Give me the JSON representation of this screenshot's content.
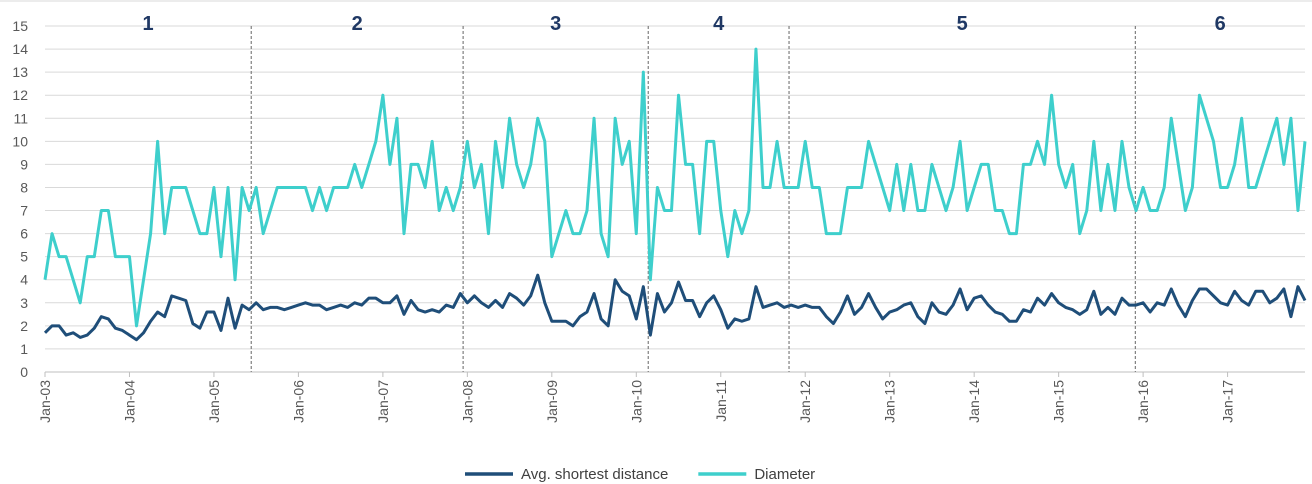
{
  "chart_data": {
    "type": "line",
    "categories": [
      "Jan-03",
      null,
      null,
      null,
      null,
      null,
      null,
      null,
      null,
      null,
      null,
      null,
      "Jan-04",
      null,
      null,
      null,
      null,
      null,
      null,
      null,
      null,
      null,
      null,
      null,
      "Jan-05",
      null,
      null,
      null,
      null,
      null,
      null,
      null,
      null,
      null,
      null,
      null,
      "Jan-06",
      null,
      null,
      null,
      null,
      null,
      null,
      null,
      null,
      null,
      null,
      null,
      "Jan-07",
      null,
      null,
      null,
      null,
      null,
      null,
      null,
      null,
      null,
      null,
      null,
      "Jan-08",
      null,
      null,
      null,
      null,
      null,
      null,
      null,
      null,
      null,
      null,
      null,
      "Jan-09",
      null,
      null,
      null,
      null,
      null,
      null,
      null,
      null,
      null,
      null,
      null,
      "Jan-10",
      null,
      null,
      null,
      null,
      null,
      null,
      null,
      null,
      null,
      null,
      null,
      "Jan-11",
      null,
      null,
      null,
      null,
      null,
      null,
      null,
      null,
      null,
      null,
      null,
      "Jan-12",
      null,
      null,
      null,
      null,
      null,
      null,
      null,
      null,
      null,
      null,
      null,
      "Jan-13",
      null,
      null,
      null,
      null,
      null,
      null,
      null,
      null,
      null,
      null,
      null,
      "Jan-14",
      null,
      null,
      null,
      null,
      null,
      null,
      null,
      null,
      null,
      null,
      null,
      "Jan-15",
      null,
      null,
      null,
      null,
      null,
      null,
      null,
      null,
      null,
      null,
      null,
      "Jan-16",
      null,
      null,
      null,
      null,
      null,
      null,
      null,
      null,
      null,
      null,
      null,
      "Jan-17",
      null,
      null,
      null,
      null,
      null,
      null,
      null,
      null,
      null,
      null,
      null
    ],
    "series": [
      {
        "name": "Avg. shortest distance",
        "color": "#1f4e79",
        "values": [
          1.7,
          2.0,
          2.0,
          1.6,
          1.7,
          1.5,
          1.6,
          1.9,
          2.4,
          2.3,
          1.9,
          1.8,
          1.6,
          1.4,
          1.7,
          2.2,
          2.6,
          2.4,
          3.3,
          3.2,
          3.1,
          2.1,
          1.9,
          2.6,
          2.6,
          1.8,
          3.2,
          1.9,
          2.9,
          2.7,
          3.0,
          2.7,
          2.8,
          2.8,
          2.7,
          2.8,
          2.9,
          3.0,
          2.9,
          2.9,
          2.7,
          2.8,
          2.9,
          2.8,
          3.0,
          2.9,
          3.2,
          3.2,
          3.0,
          3.0,
          3.3,
          2.5,
          3.1,
          2.7,
          2.6,
          2.7,
          2.6,
          2.9,
          2.8,
          3.4,
          3.0,
          3.3,
          3.0,
          2.8,
          3.1,
          2.8,
          3.4,
          3.2,
          2.9,
          3.3,
          4.2,
          3.0,
          2.2,
          2.2,
          2.2,
          2.0,
          2.4,
          2.6,
          3.4,
          2.3,
          2.0,
          4.0,
          3.5,
          3.3,
          2.3,
          3.7,
          1.6,
          3.4,
          2.6,
          3.0,
          3.9,
          3.1,
          3.1,
          2.4,
          3.0,
          3.3,
          2.7,
          1.9,
          2.3,
          2.2,
          2.3,
          3.7,
          2.8,
          2.9,
          3.0,
          2.8,
          2.9,
          2.8,
          2.9,
          2.8,
          2.8,
          2.4,
          2.1,
          2.6,
          3.3,
          2.5,
          2.8,
          3.4,
          2.8,
          2.3,
          2.6,
          2.7,
          2.9,
          3.0,
          2.4,
          2.1,
          3.0,
          2.6,
          2.5,
          2.9,
          3.6,
          2.7,
          3.2,
          3.3,
          2.9,
          2.6,
          2.5,
          2.2,
          2.2,
          2.7,
          2.6,
          3.2,
          2.9,
          3.4,
          3.0,
          2.8,
          2.7,
          2.5,
          2.7,
          3.5,
          2.5,
          2.8,
          2.5,
          3.2,
          2.9,
          2.9,
          3.0,
          2.6,
          3.0,
          2.9,
          3.6,
          2.9,
          2.4,
          3.1,
          3.6,
          3.6,
          3.3,
          3.0,
          2.9,
          3.5,
          3.1,
          2.9,
          3.5,
          3.5,
          3.0,
          3.2,
          3.6,
          2.4,
          3.7,
          3.1
        ]
      },
      {
        "name": "Diameter",
        "color": "#3ecfcc",
        "values": [
          4,
          6,
          5,
          5,
          4,
          3,
          5,
          5,
          7,
          7,
          5,
          5,
          5,
          2,
          4,
          6,
          10,
          6,
          8,
          8,
          8,
          7,
          6,
          6,
          8,
          5,
          8,
          4,
          8,
          7,
          8,
          6,
          7,
          8,
          8,
          8,
          8,
          8,
          7,
          8,
          7,
          8,
          8,
          8,
          9,
          8,
          9,
          10,
          12,
          9,
          11,
          6,
          9,
          9,
          8,
          10,
          7,
          8,
          7,
          8,
          10,
          8,
          9,
          6,
          10,
          8,
          11,
          9,
          8,
          9,
          11,
          10,
          5,
          6,
          7,
          6,
          6,
          7,
          11,
          6,
          5,
          11,
          9,
          10,
          6,
          13,
          4,
          8,
          7,
          7,
          12,
          9,
          9,
          6,
          10,
          10,
          7,
          5,
          7,
          6,
          7,
          14,
          8,
          8,
          10,
          8,
          8,
          8,
          10,
          8,
          8,
          6,
          6,
          6,
          8,
          8,
          8,
          10,
          9,
          8,
          7,
          9,
          7,
          9,
          7,
          7,
          9,
          8,
          7,
          8,
          10,
          7,
          8,
          9,
          9,
          7,
          7,
          6,
          6,
          9,
          9,
          10,
          9,
          12,
          9,
          8,
          9,
          6,
          7,
          10,
          7,
          9,
          7,
          10,
          8,
          7,
          8,
          7,
          7,
          8,
          11,
          9,
          7,
          8,
          12,
          11,
          10,
          8,
          8,
          9,
          11,
          8,
          8,
          9,
          10,
          11,
          9,
          11,
          7,
          10
        ]
      }
    ],
    "phases": [
      {
        "label": "1",
        "start": 0,
        "end": 29.3
      },
      {
        "label": "2",
        "start": 29.3,
        "end": 59.4
      },
      {
        "label": "3",
        "start": 59.4,
        "end": 85.7
      },
      {
        "label": "4",
        "start": 85.7,
        "end": 105.7
      },
      {
        "label": "5",
        "start": 105.7,
        "end": 154.9
      },
      {
        "label": "6",
        "start": 154.9,
        "end": 179
      }
    ],
    "ylim": [
      0,
      15
    ],
    "yticks": [
      0,
      1,
      2,
      3,
      4,
      5,
      6,
      7,
      8,
      9,
      10,
      11,
      12,
      13,
      14,
      15
    ],
    "grid": true,
    "legend": "bottom"
  }
}
